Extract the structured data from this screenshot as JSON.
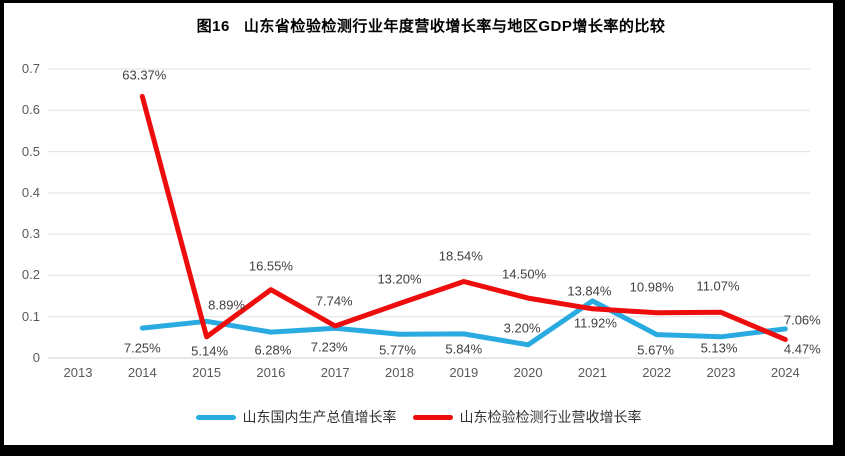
{
  "chart_data": {
    "type": "line",
    "title": "图16   山东省检验检测行业年度营收增长率与地区GDP增长率的比较",
    "categories": [
      "2013",
      "2014",
      "2015",
      "2016",
      "2017",
      "2018",
      "2019",
      "2020",
      "2021",
      "2022",
      "2023",
      "2024"
    ],
    "series": [
      {
        "name": "山东国内生产总值增长率",
        "color": "#29ABE2",
        "values": [
          null,
          7.25,
          8.89,
          6.28,
          7.23,
          5.77,
          5.84,
          3.2,
          13.84,
          5.67,
          5.13,
          7.06
        ]
      },
      {
        "name": "山东检验检测行业营收增长率",
        "color": "#EE0D0D",
        "values": [
          null,
          63.37,
          5.14,
          16.55,
          7.74,
          13.2,
          18.54,
          14.5,
          11.92,
          10.98,
          11.07,
          4.47
        ]
      }
    ],
    "xlabel": "",
    "ylabel": "",
    "ylim": [
      0,
      0.7
    ],
    "yticks": [
      "0",
      "0.1",
      "0.2",
      "0.3",
      "0.4",
      "0.5",
      "0.6",
      "0.7"
    ],
    "grid": true,
    "legend_position": "bottom",
    "data_labels": true,
    "value_unit": "%"
  },
  "colors": {
    "background": "#FFFFFF",
    "frame_border": "#000000",
    "gridline": "#E0E0E0",
    "zero_line": "#CFCFCF",
    "tick_label": "#595959",
    "data_label": "#404040",
    "title": "#000000"
  }
}
